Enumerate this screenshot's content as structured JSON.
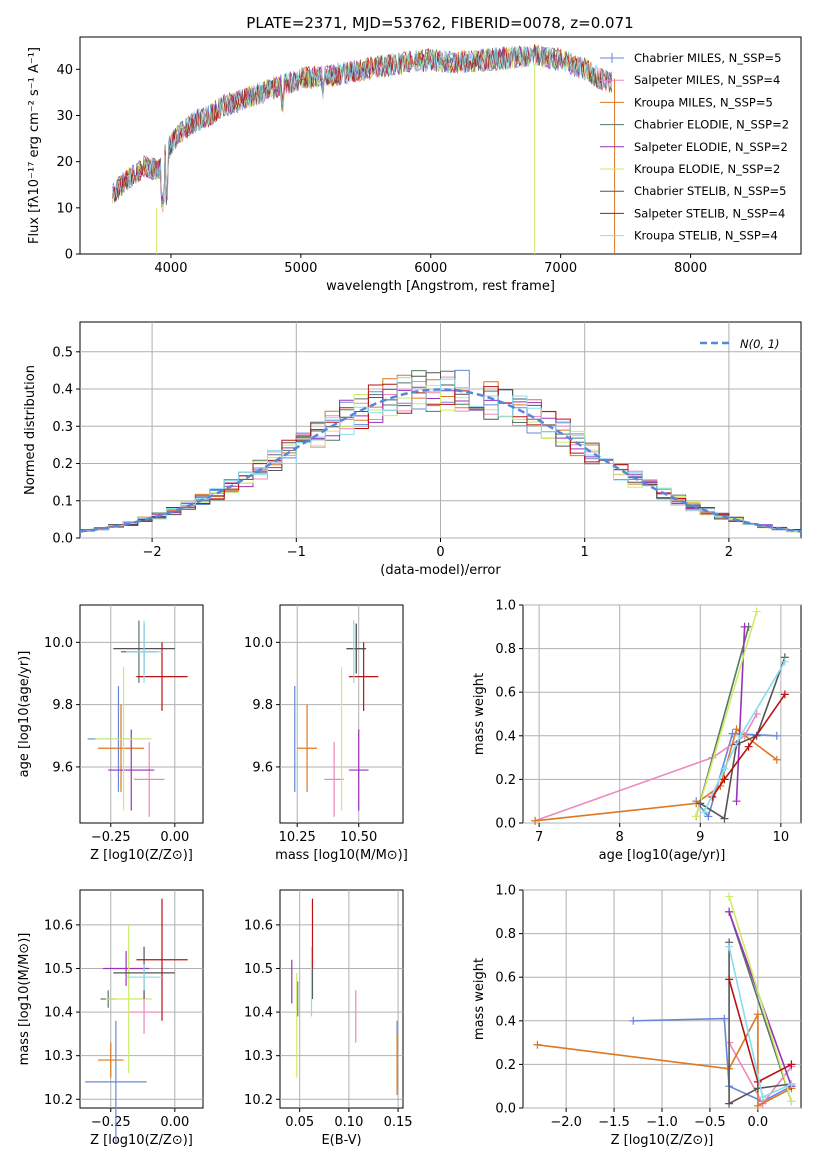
{
  "title": "PLATE=2371, MJD=53762, FIBERID=0078, z=0.071",
  "colors": [
    "#6688dd",
    "#ee88bb",
    "#dd7722",
    "#557766",
    "#9933bb",
    "#ccee66",
    "#555555",
    "#bb1111",
    "#88ddee"
  ],
  "chart_data": [
    {
      "id": "spectrum",
      "type": "line",
      "title": "PLATE=2371, MJD=53762, FIBERID=0078, z=0.071",
      "xlabel": "wavelength [Angstrom, rest frame]",
      "ylabel": "Flux [fλ10⁻¹⁷ erg cm⁻² s⁻¹ A⁻¹]",
      "xlim": [
        3300,
        8850
      ],
      "ylim": [
        0,
        47
      ],
      "xticks": [
        "4000",
        "5000",
        "6000",
        "7000",
        "8000"
      ],
      "yticks": [
        "0",
        "10",
        "20",
        "30",
        "40"
      ],
      "grid": false,
      "legend_position": "right",
      "continuum": {
        "x": [
          3550,
          3700,
          3800,
          3900,
          4000,
          4100,
          4200,
          4300,
          4400,
          4500,
          4600,
          4700,
          4800,
          4900,
          5000,
          5200,
          5400,
          5600,
          5800,
          6000,
          6200,
          6400,
          6600,
          6800,
          7000,
          7200,
          7300,
          7400
        ],
        "y": [
          13,
          17,
          19,
          18,
          24,
          27,
          29,
          30,
          32,
          33,
          34,
          35,
          36,
          37,
          38,
          38.5,
          39.5,
          40.5,
          41.5,
          42,
          41.5,
          42,
          42.5,
          43,
          42,
          40,
          38,
          37
        ]
      },
      "series": [
        {
          "name": "Chabrier MILES, N_SSP=5"
        },
        {
          "name": "Salpeter MILES, N_SSP=4"
        },
        {
          "name": "Kroupa MILES, N_SSP=5"
        },
        {
          "name": "Chabrier ELODIE, N_SSP=2"
        },
        {
          "name": "Salpeter ELODIE, N_SSP=2"
        },
        {
          "name": "Kroupa ELODIE, N_SSP=2"
        },
        {
          "name": "Chabrier STELIB, N_SSP=5"
        },
        {
          "name": "Salpeter STELIB, N_SSP=4"
        },
        {
          "name": "Kroupa STELIB, N_SSP=4"
        }
      ]
    },
    {
      "id": "residuals",
      "type": "line",
      "xlabel": "(data-model)/error",
      "ylabel": "Normed distribution",
      "xlim": [
        -2.5,
        2.5
      ],
      "ylim": [
        0,
        0.58
      ],
      "xticks": [
        "−2",
        "−1",
        "0",
        "1",
        "2"
      ],
      "xtick_values": [
        -2,
        -1,
        0,
        1,
        2
      ],
      "yticks": [
        "0.0",
        "0.1",
        "0.2",
        "0.3",
        "0.4",
        "0.5"
      ],
      "ytick_values": [
        0,
        0.1,
        0.2,
        0.3,
        0.4,
        0.5
      ],
      "grid": true,
      "legend_position": "top-right",
      "reference_curve": {
        "name": "N(0, 1)",
        "mean": 0,
        "sigma": 1
      }
    },
    {
      "id": "age-vs-Z",
      "type": "scatter",
      "xlabel": "Z [log10(Z/Z⊙)]",
      "ylabel": "age  [log10(age/yr)]",
      "xlim": [
        -0.37,
        0.11
      ],
      "ylim": [
        9.42,
        10.12
      ],
      "xticks": [
        "−0.25",
        "0.00"
      ],
      "xtick_values": [
        -0.25,
        0
      ],
      "yticks": [
        "9.6",
        "9.8",
        "10.0"
      ],
      "ytick_values": [
        9.6,
        9.8,
        10.0
      ],
      "grid": true,
      "points": [
        {
          "x": -0.22,
          "y": 9.69,
          "xerr": 0.12,
          "yerr": 0.17
        },
        {
          "x": -0.1,
          "y": 9.56,
          "xerr": 0.06,
          "yerr": 0.12
        },
        {
          "x": -0.21,
          "y": 9.66,
          "xerr": 0.09,
          "yerr": 0.14
        },
        {
          "x": -0.14,
          "y": 9.97,
          "xerr": 0.07,
          "yerr": 0.1
        },
        {
          "x": -0.17,
          "y": 9.59,
          "xerr": 0.09,
          "yerr": 0.13
        },
        {
          "x": -0.2,
          "y": 9.69,
          "xerr": 0.11,
          "yerr": 0.23
        },
        {
          "x": -0.12,
          "y": 9.98,
          "xerr": 0.12,
          "yerr": 0.08
        },
        {
          "x": -0.05,
          "y": 9.89,
          "xerr": 0.1,
          "yerr": 0.11
        },
        {
          "x": -0.12,
          "y": 9.97,
          "xerr": 0.07,
          "yerr": 0.1
        }
      ]
    },
    {
      "id": "age-vs-mass",
      "type": "scatter",
      "xlabel": "mass [log10(M/M⊙)]",
      "ylabel": "",
      "xlim": [
        10.18,
        10.68
      ],
      "ylim": [
        9.42,
        10.12
      ],
      "xticks": [
        "10.25",
        "10.50"
      ],
      "xtick_values": [
        10.25,
        10.5
      ],
      "yticks": [
        "9.6",
        "9.8",
        "10.0"
      ],
      "ytick_values": [
        9.6,
        9.8,
        10.0
      ],
      "grid": true,
      "points": [
        {
          "x": 10.24,
          "y": 9.69,
          "xerr": 0,
          "yerr": 0.17
        },
        {
          "x": 10.4,
          "y": 9.56,
          "xerr": 0.04,
          "yerr": 0.12
        },
        {
          "x": 10.29,
          "y": 9.66,
          "xerr": 0.04,
          "yerr": 0.14
        },
        {
          "x": 10.49,
          "y": 9.98,
          "xerr": 0.04,
          "yerr": 0.08
        },
        {
          "x": 10.5,
          "y": 9.59,
          "xerr": 0.04,
          "yerr": 0.13
        },
        {
          "x": 10.43,
          "y": 9.69,
          "xerr": 0,
          "yerr": 0.23
        },
        {
          "x": 10.49,
          "y": 9.98,
          "xerr": 0.04,
          "yerr": 0.08
        },
        {
          "x": 10.52,
          "y": 9.89,
          "xerr": 0.06,
          "yerr": 0.11
        },
        {
          "x": 10.48,
          "y": 9.97,
          "xerr": 0,
          "yerr": 0.1
        }
      ]
    },
    {
      "id": "weight-vs-age",
      "type": "line",
      "xlabel": "age  [log10(age/yr)]",
      "ylabel": "mass weight",
      "xlim": [
        6.8,
        10.25
      ],
      "ylim": [
        0,
        1
      ],
      "xticks": [
        "7",
        "8",
        "9",
        "10"
      ],
      "xtick_values": [
        7,
        8,
        9,
        10
      ],
      "yticks": [
        "0.0",
        "0.2",
        "0.4",
        "0.6",
        "0.8",
        "1.0"
      ],
      "ytick_values": [
        0,
        0.2,
        0.4,
        0.6,
        0.8,
        1
      ],
      "grid": true,
      "series": [
        {
          "x": [
            8.95,
            9.1,
            9.4,
            9.95
          ],
          "y": [
            0.1,
            0.03,
            0.41,
            0.4
          ]
        },
        {
          "x": [
            6.95,
            9.15,
            9.55,
            9.7
          ],
          "y": [
            0.01,
            0.3,
            0.4,
            0.5
          ]
        },
        {
          "x": [
            6.95,
            8.95,
            9.25,
            9.45,
            9.95
          ],
          "y": [
            0.01,
            0.09,
            0.17,
            0.43,
            0.29
          ]
        },
        {
          "x": [
            8.95,
            9.6
          ],
          "y": [
            0.03,
            0.9
          ]
        },
        {
          "x": [
            9.45,
            9.55
          ],
          "y": [
            0.1,
            0.9
          ]
        },
        {
          "x": [
            8.95,
            9.7
          ],
          "y": [
            0.03,
            0.97
          ]
        },
        {
          "x": [
            9.0,
            9.3,
            9.45,
            9.7,
            10.05
          ],
          "y": [
            0.09,
            0.02,
            0.36,
            0.4,
            0.76
          ]
        },
        {
          "x": [
            9.15,
            9.3,
            9.6,
            10.05
          ],
          "y": [
            0.12,
            0.2,
            0.35,
            0.59
          ]
        },
        {
          "x": [
            9.05,
            9.3,
            9.5,
            10.05
          ],
          "y": [
            0.05,
            0.25,
            0.4,
            0.74
          ]
        }
      ]
    },
    {
      "id": "mass-vs-Z",
      "type": "scatter",
      "xlabel": "Z [log10(Z/Z⊙)]",
      "ylabel": "mass [log10(M/M⊙)]",
      "xlim": [
        -0.37,
        0.11
      ],
      "ylim": [
        10.18,
        10.68
      ],
      "xticks": [
        "−0.25",
        "0.00"
      ],
      "xtick_values": [
        -0.25,
        0
      ],
      "yticks": [
        "10.2",
        "10.3",
        "10.4",
        "10.5",
        "10.6"
      ],
      "ytick_values": [
        10.2,
        10.3,
        10.4,
        10.5,
        10.6
      ],
      "grid": true,
      "points": [
        {
          "x": -0.23,
          "y": 10.24,
          "xerr": 0.12,
          "yerr": 0.14
        },
        {
          "x": -0.12,
          "y": 10.4,
          "xerr": 0.06,
          "yerr": 0.05
        },
        {
          "x": -0.25,
          "y": 10.29,
          "xerr": 0.05,
          "yerr": 0.04
        },
        {
          "x": -0.26,
          "y": 10.43,
          "xerr": 0.03,
          "yerr": 0.02
        },
        {
          "x": -0.19,
          "y": 10.5,
          "xerr": 0.09,
          "yerr": 0.04
        },
        {
          "x": -0.18,
          "y": 10.43,
          "xerr": 0.09,
          "yerr": 0.17
        },
        {
          "x": -0.12,
          "y": 10.49,
          "xerr": 0.12,
          "yerr": 0.06
        },
        {
          "x": -0.05,
          "y": 10.52,
          "xerr": 0.1,
          "yerr": 0.14
        },
        {
          "x": -0.12,
          "y": 10.48,
          "xerr": 0.07,
          "yerr": 0.03
        }
      ]
    },
    {
      "id": "mass-vs-EBV",
      "type": "scatter",
      "xlabel": "E(B-V)",
      "ylabel": "",
      "xlim": [
        0.03,
        0.155
      ],
      "ylim": [
        10.18,
        10.68
      ],
      "xticks": [
        "0.05",
        "0.10",
        "0.15"
      ],
      "xtick_values": [
        0.05,
        0.1,
        0.15
      ],
      "yticks": [
        "10.2",
        "10.3",
        "10.4",
        "10.5",
        "10.6"
      ],
      "ytick_values": [
        10.2,
        10.3,
        10.4,
        10.5,
        10.6
      ],
      "grid": true,
      "points": [
        {
          "x": 0.149,
          "y": 10.3,
          "xerr": 0,
          "yerr": 0.08
        },
        {
          "x": 0.107,
          "y": 10.39,
          "xerr": 0,
          "yerr": 0.06
        },
        {
          "x": 0.149,
          "y": 10.28,
          "xerr": 0,
          "yerr": 0.07
        },
        {
          "x": 0.048,
          "y": 10.43,
          "xerr": 0,
          "yerr": 0.04
        },
        {
          "x": 0.042,
          "y": 10.47,
          "xerr": 0,
          "yerr": 0.05
        },
        {
          "x": 0.047,
          "y": 10.37,
          "xerr": 0,
          "yerr": 0.12
        },
        {
          "x": 0.063,
          "y": 10.49,
          "xerr": 0,
          "yerr": 0.06
        },
        {
          "x": 0.063,
          "y": 10.58,
          "xerr": 0,
          "yerr": 0.08
        },
        {
          "x": 0.062,
          "y": 10.47,
          "xerr": 0,
          "yerr": 0.08
        }
      ]
    },
    {
      "id": "weight-vs-Z",
      "type": "line",
      "xlabel": "Z [log10(Z/Z⊙)]",
      "ylabel": "mass weight",
      "xlim": [
        -2.45,
        0.45
      ],
      "ylim": [
        0,
        1
      ],
      "xticks": [
        "−2.0",
        "−1.5",
        "−1.0",
        "−0.5",
        "0.0"
      ],
      "xtick_values": [
        -2,
        -1.5,
        -1,
        -0.5,
        0
      ],
      "yticks": [
        "0.0",
        "0.2",
        "0.4",
        "0.6",
        "0.8",
        "1.0"
      ],
      "ytick_values": [
        0,
        0.2,
        0.4,
        0.6,
        0.8,
        1
      ],
      "grid": true,
      "series": [
        {
          "x": [
            -1.3,
            -0.35,
            -0.3,
            0.05,
            0.35
          ],
          "y": [
            0.4,
            0.41,
            0.1,
            0.03,
            0.1
          ]
        },
        {
          "x": [
            -0.3,
            0.05,
            0.35
          ],
          "y": [
            0.3,
            0.02,
            0.19
          ]
        },
        {
          "x": [
            -2.3,
            -0.3,
            0.0,
            0.0,
            0.35
          ],
          "y": [
            0.29,
            0.18,
            0.43,
            0.01,
            0.09
          ]
        },
        {
          "x": [
            -0.3,
            0.35
          ],
          "y": [
            0.9,
            0.03
          ]
        },
        {
          "x": [
            -0.3,
            0.35
          ],
          "y": [
            0.9,
            0.1
          ]
        },
        {
          "x": [
            -0.3,
            0.35
          ],
          "y": [
            0.97,
            0.03
          ]
        },
        {
          "x": [
            -0.3,
            -0.3,
            0.0,
            0.35
          ],
          "y": [
            0.76,
            0.02,
            0.09,
            0.11
          ]
        },
        {
          "x": [
            -0.3,
            0.0,
            0.35
          ],
          "y": [
            0.59,
            0.12,
            0.2
          ]
        },
        {
          "x": [
            -0.3,
            0.05,
            0.35
          ],
          "y": [
            0.74,
            0.05,
            0.11
          ]
        }
      ]
    }
  ]
}
